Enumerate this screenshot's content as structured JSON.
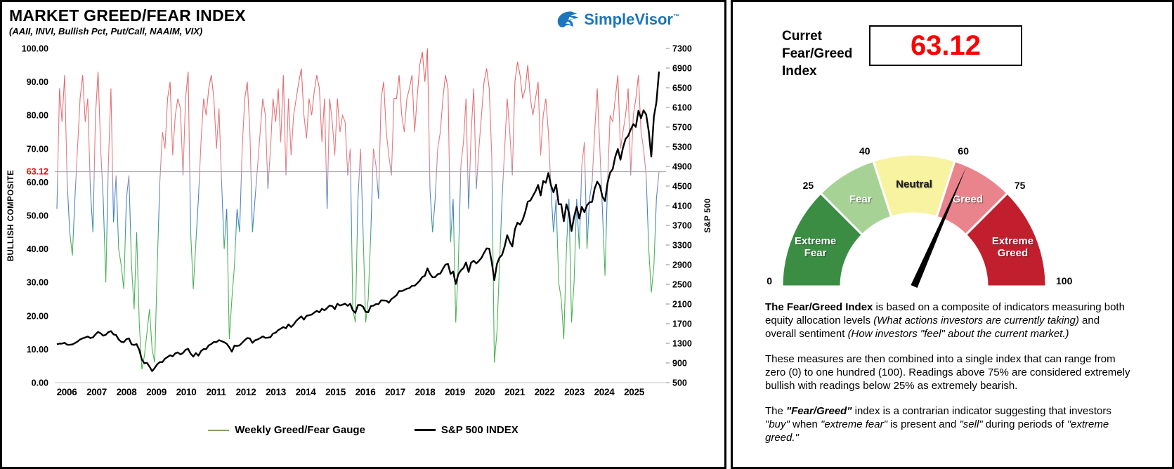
{
  "left_panel": {
    "title": "MARKET GREED/FEAR INDEX",
    "subtitle": "(AAII, INVI, Bullish Pct, Put/Call, NAAIM, VIX)",
    "logo_text": "SimpleVisor",
    "logo_tm": "TM",
    "logo_color": "#1b75bc",
    "y_axis_left_title": "BULLISH COMPOSITE",
    "y_axis_right_title": "S&P 500",
    "legend": [
      {
        "label": "Weekly Greed/Fear Gauge",
        "color": "#7f9e63",
        "thickness": 2
      },
      {
        "label": "S&P 500 INDEX",
        "color": "#000000",
        "thickness": 3
      }
    ]
  },
  "right_panel": {
    "current_label": "Curret Fear/Greed Index",
    "current_value": "63.12",
    "current_value_color": "#ff0000",
    "paragraphs": [
      [
        {
          "t": "The Fear/Greed Index",
          "b": true
        },
        {
          "t": " is based on a composite of indicators measuring both equity allocation levels "
        },
        {
          "t": "(What actions investors are currently taking)",
          "i": true
        },
        {
          "t": " and overall sentiment "
        },
        {
          "t": "(How investors \"feel\" about the current market.)",
          "i": true
        }
      ],
      [
        {
          "t": "These measures are then combined into a single index that can range from zero (0) to one hundred (100). Readings above 75% are considered extremely bullish with readings below 25% as extremely bearish."
        }
      ],
      [
        {
          "t": "The "
        },
        {
          "t": "\"Fear/Greed\"",
          "b": true,
          "i": true
        },
        {
          "t": " index is a contrarian indicator suggesting that investors "
        },
        {
          "t": "\"buy\"",
          "i": true
        },
        {
          "t": " when "
        },
        {
          "t": "\"extreme fear\"",
          "i": true
        },
        {
          "t": " is present and "
        },
        {
          "t": "\"sell\"",
          "i": true
        },
        {
          "t": " during periods of "
        },
        {
          "t": "\"extreme greed.\"",
          "i": true
        }
      ]
    ]
  },
  "chart_data": [
    {
      "type": "line",
      "title": "MARKET GREED/FEAR INDEX",
      "x_interval": "monthly",
      "x_start_year": 2006,
      "x_tick_labels": [
        "2006",
        "2007",
        "2008",
        "2009",
        "2010",
        "2011",
        "2012",
        "2013",
        "2014",
        "2015",
        "2016",
        "2017",
        "2018",
        "2019",
        "2020",
        "2021",
        "2022",
        "2023",
        "2024",
        "2025"
      ],
      "ylabel_left": "BULLISH COMPOSITE",
      "ylim_left": [
        0,
        100
      ],
      "yticks_left": [
        0,
        10,
        20,
        30,
        40,
        50,
        60,
        70,
        80,
        90,
        100
      ],
      "ylabel_right": "S&P 500",
      "ylim_right": [
        500,
        7300
      ],
      "yticks_right": [
        500,
        900,
        1300,
        1700,
        2100,
        2500,
        2900,
        3300,
        3700,
        4100,
        4500,
        4900,
        5300,
        5700,
        6100,
        6500,
        6900,
        7300
      ],
      "reference_line": {
        "value": 63.12,
        "label": "63.12",
        "label_color": "#ff0000",
        "line_color": "#a8a8a8"
      },
      "gradient_stops": [
        {
          "v": 100,
          "c": "#e36060"
        },
        {
          "v": 68,
          "c": "#e57f86"
        },
        {
          "v": 63,
          "c": "#b58fa6"
        },
        {
          "v": 57,
          "c": "#5a86c5"
        },
        {
          "v": 50,
          "c": "#3f7fc1"
        },
        {
          "v": 46,
          "c": "#3d9a98"
        },
        {
          "v": 41,
          "c": "#4fb05e"
        },
        {
          "v": 0,
          "c": "#4ab54a"
        }
      ],
      "series": [
        {
          "name": "Weekly Greed/Fear Gauge",
          "axis": "left",
          "style": "gradient",
          "width": 1.1,
          "values": [
            52,
            88,
            78,
            92,
            60,
            45,
            38,
            55,
            70,
            85,
            92,
            78,
            85,
            58,
            45,
            80,
            93,
            70,
            55,
            30,
            65,
            88,
            48,
            62,
            40,
            35,
            28,
            55,
            62,
            35,
            22,
            45,
            18,
            4,
            8,
            15,
            22,
            10,
            6,
            35,
            60,
            75,
            70,
            85,
            90,
            68,
            80,
            85,
            82,
            62,
            85,
            93,
            45,
            28,
            42,
            55,
            72,
            85,
            80,
            88,
            92,
            85,
            70,
            82,
            60,
            40,
            52,
            13,
            25,
            35,
            52,
            45,
            70,
            85,
            90,
            75,
            45,
            55,
            65,
            75,
            85,
            80,
            58,
            70,
            85,
            78,
            88,
            72,
            92,
            62,
            85,
            68,
            80,
            85,
            90,
            94,
            80,
            73,
            85,
            80,
            87,
            92,
            88,
            72,
            85,
            52,
            85,
            78,
            68,
            85,
            75,
            80,
            78,
            62,
            70,
            22,
            18,
            55,
            70,
            45,
            18,
            25,
            45,
            70,
            65,
            55,
            85,
            90,
            75,
            68,
            62,
            85,
            85,
            92,
            80,
            75,
            85,
            88,
            92,
            75,
            85,
            95,
            99,
            90,
            100,
            58,
            45,
            55,
            70,
            75,
            85,
            92,
            88,
            42,
            55,
            18,
            35,
            65,
            72,
            85,
            52,
            75,
            88,
            58,
            70,
            80,
            90,
            94,
            88,
            68,
            6,
            15,
            35,
            55,
            70,
            85,
            75,
            62,
            90,
            96,
            92,
            85,
            88,
            95,
            85,
            80,
            85,
            90,
            68,
            80,
            85,
            75,
            58,
            45,
            55,
            30,
            25,
            13,
            40,
            55,
            18,
            30,
            55,
            40,
            65,
            72,
            40,
            55,
            60,
            75,
            88,
            70,
            52,
            32,
            60,
            80,
            78,
            85,
            92,
            70,
            75,
            80,
            88,
            62,
            80,
            85,
            92,
            75,
            70,
            62,
            40,
            27,
            35,
            55,
            63.12
          ]
        },
        {
          "name": "S&P 500 INDEX",
          "axis": "right",
          "color": "#000000",
          "width": 2.4,
          "values": [
            1280,
            1294,
            1295,
            1311,
            1270,
            1270,
            1277,
            1304,
            1336,
            1378,
            1401,
            1418,
            1438,
            1407,
            1421,
            1482,
            1531,
            1503,
            1455,
            1474,
            1527,
            1549,
            1481,
            1468,
            1379,
            1331,
            1323,
            1386,
            1400,
            1280,
            1267,
            1283,
            1166,
            969,
            896,
            903,
            826,
            735,
            798,
            873,
            919,
            919,
            987,
            1021,
            1057,
            1036,
            1096,
            1115,
            1074,
            1104,
            1169,
            1187,
            1089,
            1031,
            1102,
            1049,
            1141,
            1183,
            1181,
            1258,
            1286,
            1327,
            1326,
            1364,
            1345,
            1321,
            1292,
            1219,
            1131,
            1253,
            1247,
            1258,
            1312,
            1366,
            1408,
            1398,
            1310,
            1362,
            1379,
            1407,
            1441,
            1412,
            1416,
            1426,
            1498,
            1515,
            1569,
            1598,
            1631,
            1606,
            1686,
            1633,
            1682,
            1757,
            1806,
            1848,
            1783,
            1859,
            1872,
            1884,
            1924,
            1960,
            1931,
            2003,
            1972,
            2018,
            2068,
            2059,
            1995,
            2105,
            2068,
            2086,
            2107,
            2063,
            2104,
            1972,
            1920,
            2079,
            2080,
            2044,
            1940,
            1932,
            2060,
            2065,
            2097,
            2099,
            2174,
            2171,
            2168,
            2126,
            2199,
            2239,
            2279,
            2364,
            2363,
            2384,
            2412,
            2423,
            2470,
            2472,
            2519,
            2575,
            2648,
            2674,
            2824,
            2714,
            2641,
            2648,
            2705,
            2718,
            2816,
            2902,
            2914,
            2712,
            2760,
            2507,
            2704,
            2785,
            2834,
            2946,
            2752,
            2942,
            2980,
            2926,
            2977,
            3038,
            3141,
            3231,
            3226,
            2954,
            2585,
            2912,
            3044,
            3100,
            3271,
            3500,
            3363,
            3270,
            3622,
            3756,
            3714,
            3811,
            3973,
            4181,
            4204,
            4298,
            4395,
            4523,
            4308,
            4605,
            4567,
            4766,
            4516,
            4374,
            4530,
            4132,
            4132,
            3785,
            4130,
            3955,
            3586,
            3872,
            4080,
            3840,
            4077,
            3970,
            4109,
            4169,
            4180,
            4450,
            4589,
            4508,
            4288,
            4194,
            4568,
            4770,
            4846,
            5096,
            5254,
            5036,
            5278,
            5460,
            5522,
            5648,
            5762,
            5705,
            6032,
            5882,
            6041,
            5955,
            5612,
            5100,
            5912,
            6205,
            6830
          ]
        }
      ]
    },
    {
      "type": "pie",
      "subtype": "semicircle_gauge",
      "min": 0,
      "max": 100,
      "needle_value": 63.12,
      "needle_color": "#000000",
      "tick_labels": [
        0,
        25,
        40,
        60,
        75,
        100
      ],
      "segments": [
        {
          "label": "Extreme Fear",
          "from": 0,
          "to": 25,
          "color": "#3a8d43",
          "text_color": "#ffffff"
        },
        {
          "label": "Fear",
          "from": 25,
          "to": 40,
          "color": "#a6d395",
          "text_color": "#ffffff"
        },
        {
          "label": "Neutral",
          "from": 40,
          "to": 60,
          "color": "#f7f3a1",
          "text_color": "#1a1a1a"
        },
        {
          "label": "Greed",
          "from": 60,
          "to": 75,
          "color": "#e9848d",
          "text_color": "#ffffff"
        },
        {
          "label": "Extreme Greed",
          "from": 75,
          "to": 100,
          "color": "#c11f2e",
          "text_color": "#ffffff"
        }
      ]
    }
  ]
}
